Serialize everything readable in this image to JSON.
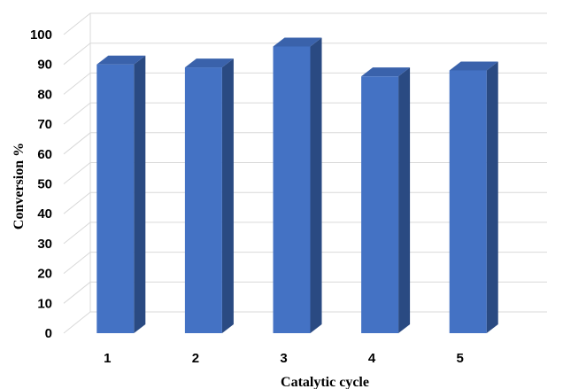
{
  "chart_data": {
    "type": "bar",
    "style": "3d-column",
    "categories": [
      "1",
      "2",
      "3",
      "4",
      "5"
    ],
    "series": [
      {
        "values": [
          90,
          89,
          96,
          86,
          88
        ]
      }
    ],
    "xlabel": "Catalytic cycle",
    "ylabel": "Conversion %",
    "ylim": [
      0,
      100
    ],
    "yticks": [
      "0",
      "10",
      "20",
      "30",
      "40",
      "50",
      "60",
      "70",
      "80",
      "90",
      "100"
    ],
    "grid": true,
    "legend": "none",
    "colors": {
      "bar_front": "#4472c4",
      "bar_side": "#2a4a82",
      "bar_top": "#3a62ab",
      "grid": "#d9d9d9"
    }
  }
}
